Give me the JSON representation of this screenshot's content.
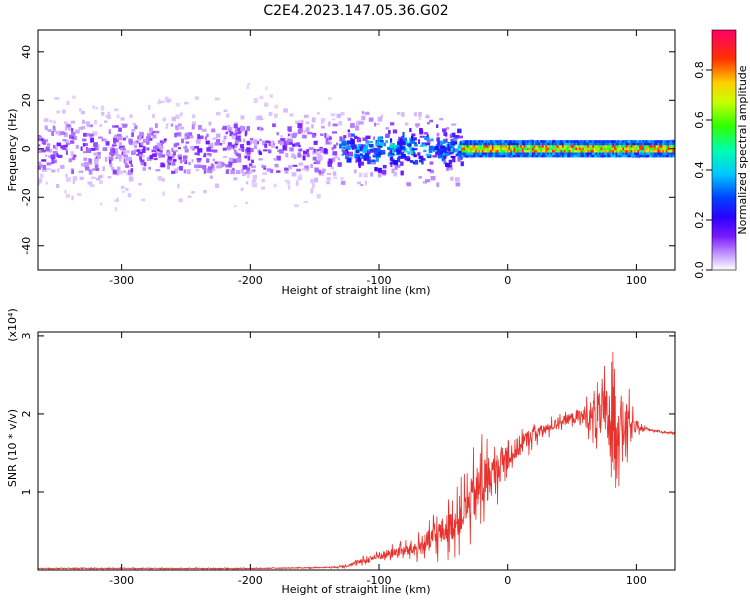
{
  "title": "C2E4.2023.147.05.36.G02",
  "colors": {
    "snr_line": "#e8312c",
    "spectrogram_scale": [
      "#ffffff",
      "#a050ff",
      "#5a00ff",
      "#0000ff",
      "#00c8ff",
      "#00ff80",
      "#c8ff00",
      "#ffc800",
      "#ff2000",
      "#ff0060"
    ]
  },
  "chart_data": [
    {
      "type": "heatmap",
      "xlabel": "Height of straight line (km)",
      "ylabel": "Frequency (Hz)",
      "xlim": [
        -365,
        130
      ],
      "ylim": [
        -50,
        49
      ],
      "xticks": [
        -300,
        -200,
        -100,
        0,
        100
      ],
      "yticks": [
        -40,
        -20,
        0,
        20,
        40
      ],
      "colorbar": {
        "label": "Normalized spectral amplitude",
        "range": [
          0.0,
          0.96
        ],
        "ticks": [
          "0.0",
          "0.2",
          "0.4",
          "0.6",
          "0.8"
        ]
      },
      "grid": false,
      "description_regions": [
        {
          "x_range": [
            -365,
            -130
          ],
          "freq_spread": 50,
          "amplitude": 0.1
        },
        {
          "x_range": [
            -130,
            -35
          ],
          "freq_spread": 15,
          "amplitude": 0.45
        },
        {
          "x_range": [
            -35,
            130
          ],
          "freq_spread": 3,
          "amplitude": 0.6
        }
      ]
    },
    {
      "type": "line",
      "xlabel": "Height of straight line (km)",
      "ylabel": "SNR (10 * v/v)",
      "y_multiplier": "(x10⁴)",
      "xlim": [
        -365,
        130
      ],
      "ylim": [
        0,
        3.05
      ],
      "xticks": [
        -300,
        -200,
        -100,
        0,
        100
      ],
      "yticks": [
        1,
        2,
        3
      ],
      "series": [
        {
          "x": [
            -365,
            -300,
            -200,
            -150,
            -130,
            -115,
            -100,
            -90,
            -80,
            -70,
            -60,
            -50,
            -40,
            -30,
            -20,
            -10,
            0,
            10,
            20,
            30,
            40,
            50,
            60,
            70,
            80,
            90,
            100,
            110,
            120,
            130
          ],
          "y": [
            0.02,
            0.02,
            0.02,
            0.03,
            0.04,
            0.1,
            0.18,
            0.22,
            0.25,
            0.28,
            0.38,
            0.5,
            0.6,
            0.85,
            1.1,
            1.25,
            1.45,
            1.6,
            1.75,
            1.8,
            1.9,
            1.95,
            1.97,
            1.98,
            1.95,
            1.85,
            1.82,
            1.8,
            1.77,
            1.75
          ],
          "noise_amplitude": [
            0.01,
            0.01,
            0.01,
            0.01,
            0.02,
            0.06,
            0.12,
            0.12,
            0.15,
            0.2,
            0.35,
            0.4,
            0.45,
            0.6,
            0.8,
            0.5,
            0.35,
            0.3,
            0.2,
            0.15,
            0.12,
            0.15,
            0.3,
            0.6,
            1.0,
            0.8,
            0.1,
            0.03,
            0.02,
            0.02
          ]
        }
      ]
    }
  ]
}
